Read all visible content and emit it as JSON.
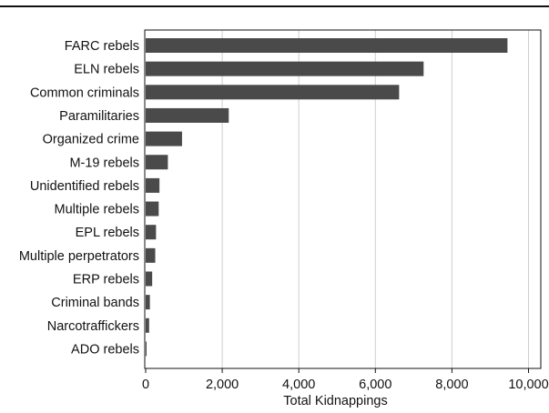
{
  "chart_data": {
    "type": "bar",
    "orientation": "horizontal",
    "categories": [
      "FARC rebels",
      "ELN rebels",
      "Common criminals",
      "Paramilitaries",
      "Organized crime",
      "M-19 rebels",
      "Unidentified rebels",
      "Multiple rebels",
      "EPL rebels",
      "Multiple perpetrators",
      "ERP rebels",
      "Criminal bands",
      "Narcotraffickers",
      "ADO rebels"
    ],
    "values": [
      9450,
      7260,
      6620,
      2170,
      950,
      580,
      360,
      340,
      270,
      250,
      170,
      110,
      90,
      20
    ],
    "xlabel": "Total Kidnappings",
    "ylabel": "",
    "xlim": [
      0,
      10000
    ],
    "xticks": [
      0,
      2000,
      4000,
      6000,
      8000,
      10000
    ],
    "xtick_labels": [
      "0",
      "2,000",
      "4,000",
      "6,000",
      "8,000",
      "10,000"
    ],
    "grid": "vertical",
    "bar_color": "#4a4a4a",
    "grid_color": "#cfcfcf"
  }
}
